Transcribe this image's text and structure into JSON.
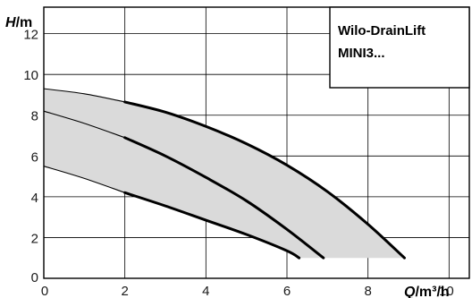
{
  "chart_data": {
    "type": "line",
    "title": "Wilo-DrainLift MINI3...",
    "title_lines": [
      "Wilo-DrainLift",
      "MINI3..."
    ],
    "xlabel": {
      "var": "Q",
      "unit": "/m³/h"
    },
    "ylabel": {
      "var": "H",
      "unit": "/m"
    },
    "xlim": [
      0,
      10.5
    ],
    "ylim": [
      0,
      13.3
    ],
    "x_ticks": [
      0,
      2,
      4,
      6,
      8,
      10
    ],
    "y_ticks": [
      0,
      2,
      4,
      6,
      8,
      10,
      12
    ],
    "grid": true,
    "series": [
      {
        "x": [
          0,
          1,
          2,
          3,
          4,
          5,
          6,
          6.3
        ],
        "y": [
          5.5,
          4.9,
          4.2,
          3.55,
          2.85,
          2.15,
          1.35,
          1.0
        ]
      },
      {
        "x": [
          0,
          1,
          2,
          3,
          4,
          5,
          6,
          6.9
        ],
        "y": [
          8.2,
          7.6,
          6.9,
          6.0,
          4.95,
          3.8,
          2.4,
          1.0
        ]
      },
      {
        "x": [
          0,
          1,
          2,
          3,
          4,
          5,
          6,
          7,
          8,
          8.9
        ],
        "y": [
          9.3,
          9.05,
          8.65,
          8.15,
          7.45,
          6.6,
          5.55,
          4.25,
          2.65,
          1.0
        ]
      }
    ],
    "operating_range_fill": "#dadada"
  }
}
